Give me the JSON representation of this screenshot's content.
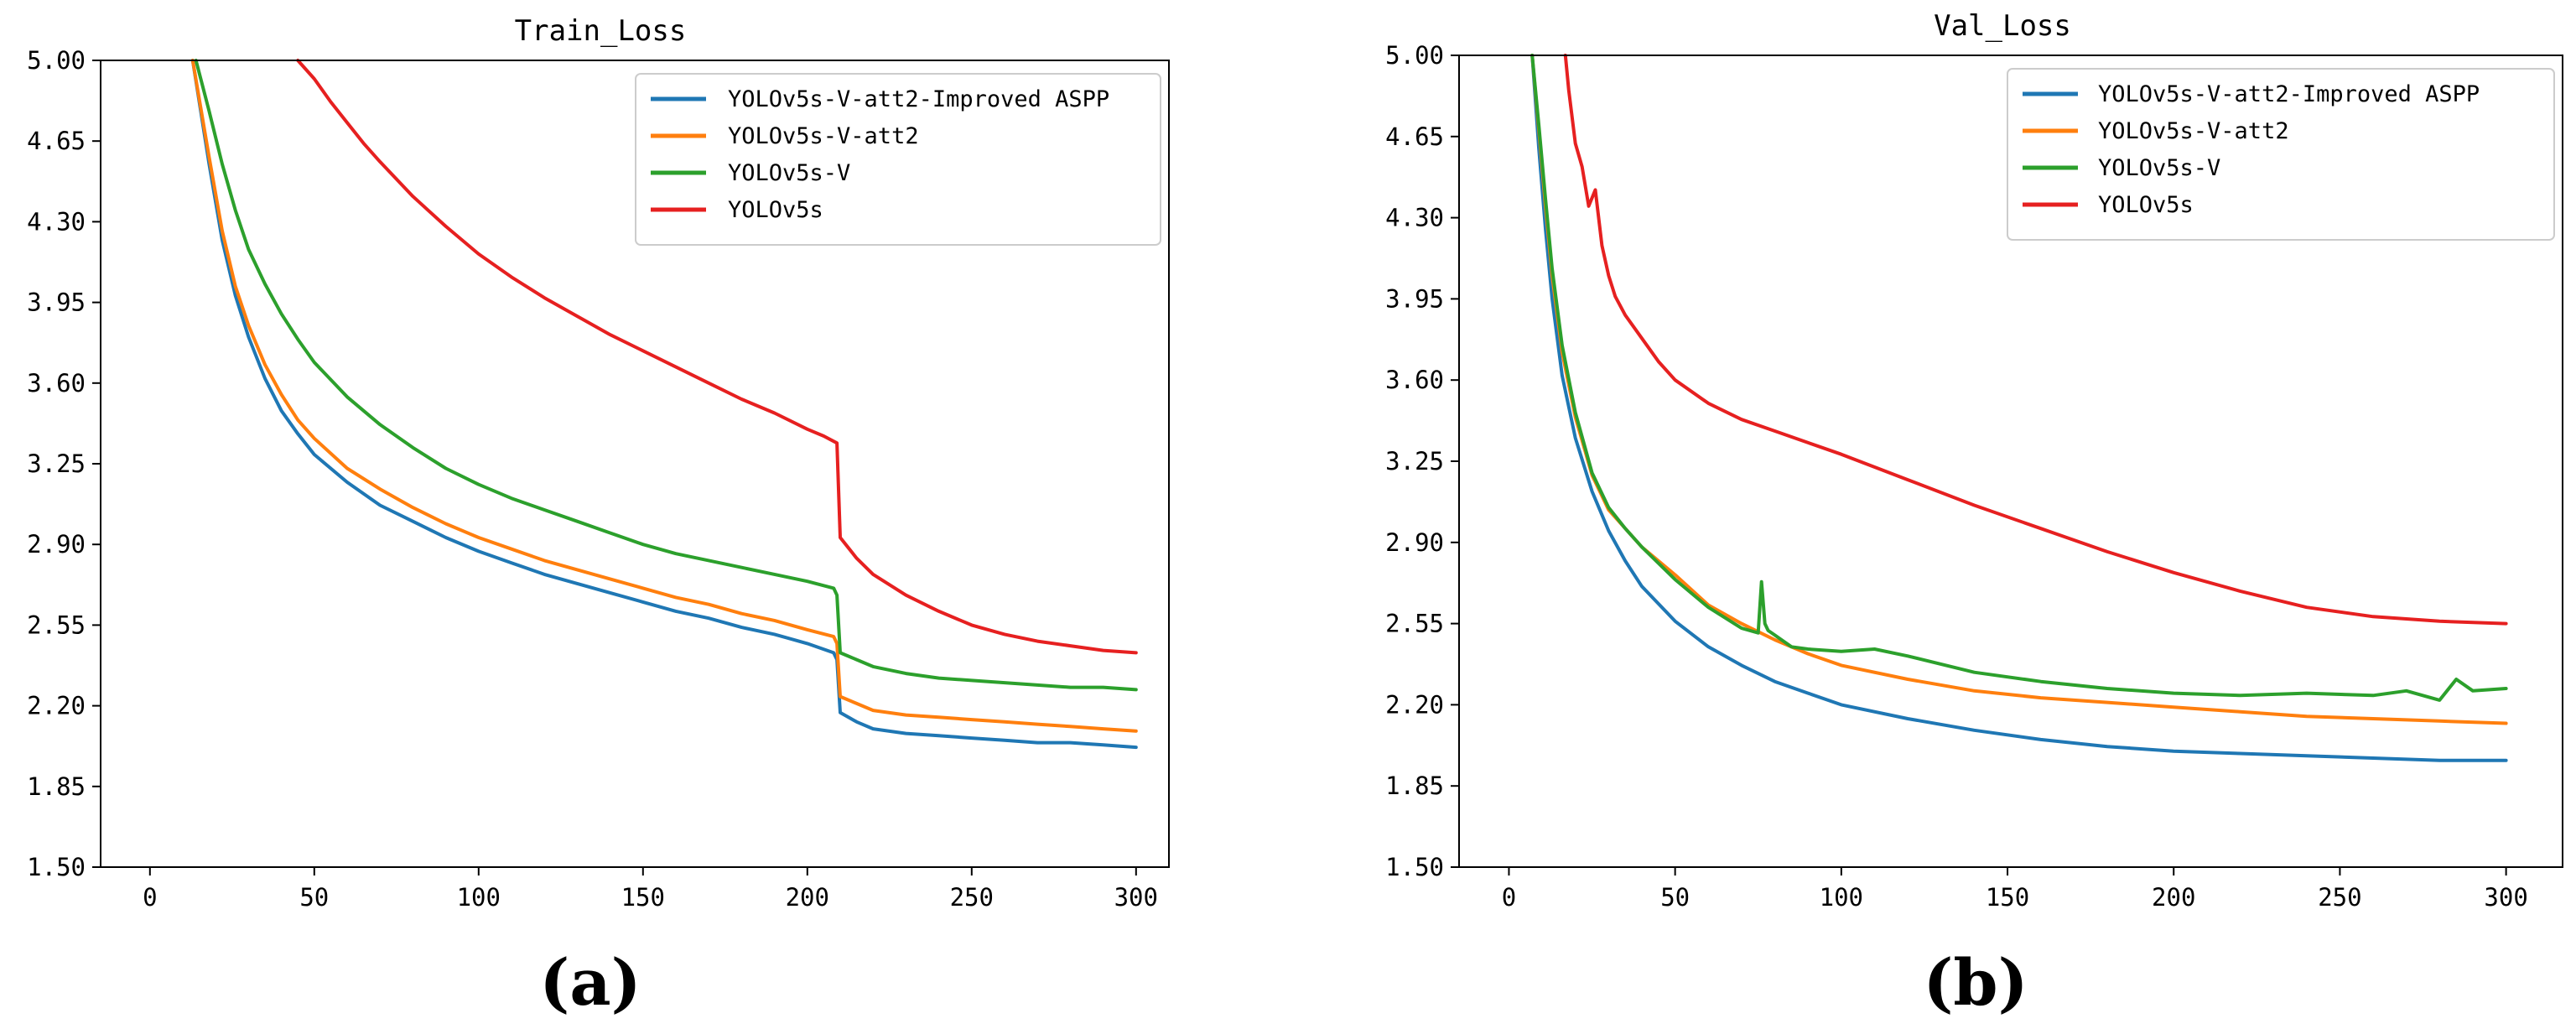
{
  "chart_data": [
    {
      "type": "line",
      "title": "Train_Loss",
      "panel_label": "(a)",
      "xlabel": "",
      "ylabel": "",
      "xlim": [
        -15,
        310
      ],
      "ylim": [
        1.5,
        5.0
      ],
      "xticks": [
        "0",
        "50",
        "100",
        "150",
        "200",
        "250",
        "300"
      ],
      "yticks": [
        "1.50",
        "1.85",
        "2.20",
        "2.55",
        "2.90",
        "3.25",
        "3.60",
        "3.95",
        "4.30",
        "4.65",
        "5.00"
      ],
      "grid": false,
      "legend_position": "upper right",
      "series": [
        {
          "name": "YOLOv5s-V-att2-Improved ASPP",
          "color": "#1f77b4",
          "x": [
            13,
            18,
            22,
            26,
            30,
            35,
            40,
            45,
            50,
            60,
            70,
            80,
            90,
            100,
            110,
            120,
            130,
            140,
            150,
            160,
            170,
            180,
            190,
            200,
            208,
            209,
            210,
            215,
            220,
            230,
            240,
            250,
            260,
            270,
            280,
            290,
            300
          ],
          "y": [
            5.0,
            4.55,
            4.22,
            3.98,
            3.8,
            3.62,
            3.48,
            3.38,
            3.29,
            3.17,
            3.07,
            3.0,
            2.93,
            2.87,
            2.82,
            2.77,
            2.73,
            2.69,
            2.65,
            2.61,
            2.58,
            2.54,
            2.51,
            2.47,
            2.43,
            2.4,
            2.17,
            2.13,
            2.1,
            2.08,
            2.07,
            2.06,
            2.05,
            2.04,
            2.04,
            2.03,
            2.02
          ]
        },
        {
          "name": "YOLOv5s-V-att2",
          "color": "#ff7f0e",
          "x": [
            13,
            18,
            22,
            26,
            30,
            35,
            40,
            45,
            50,
            60,
            70,
            80,
            90,
            100,
            110,
            120,
            130,
            140,
            150,
            160,
            170,
            180,
            190,
            200,
            208,
            209,
            210,
            215,
            220,
            230,
            240,
            250,
            260,
            270,
            280,
            290,
            300
          ],
          "y": [
            5.0,
            4.58,
            4.26,
            4.02,
            3.85,
            3.68,
            3.55,
            3.44,
            3.36,
            3.23,
            3.14,
            3.06,
            2.99,
            2.93,
            2.88,
            2.83,
            2.79,
            2.75,
            2.71,
            2.67,
            2.64,
            2.6,
            2.57,
            2.53,
            2.5,
            2.47,
            2.24,
            2.21,
            2.18,
            2.16,
            2.15,
            2.14,
            2.13,
            2.12,
            2.11,
            2.1,
            2.09
          ]
        },
        {
          "name": "YOLOv5s-V",
          "color": "#2ca02c",
          "x": [
            14,
            18,
            22,
            26,
            30,
            35,
            40,
            45,
            50,
            60,
            70,
            80,
            90,
            100,
            110,
            120,
            130,
            140,
            150,
            160,
            170,
            180,
            190,
            200,
            208,
            209,
            210,
            215,
            220,
            230,
            240,
            250,
            260,
            270,
            280,
            290,
            300
          ],
          "y": [
            5.0,
            4.78,
            4.55,
            4.35,
            4.18,
            4.03,
            3.9,
            3.79,
            3.69,
            3.54,
            3.42,
            3.32,
            3.23,
            3.16,
            3.1,
            3.05,
            3.0,
            2.95,
            2.9,
            2.86,
            2.83,
            2.8,
            2.77,
            2.74,
            2.71,
            2.68,
            2.43,
            2.4,
            2.37,
            2.34,
            2.32,
            2.31,
            2.3,
            2.29,
            2.28,
            2.28,
            2.27
          ]
        },
        {
          "name": "YOLOv5s",
          "color": "#e62020",
          "x": [
            45,
            50,
            55,
            60,
            65,
            70,
            80,
            90,
            100,
            110,
            120,
            130,
            140,
            150,
            160,
            170,
            180,
            190,
            200,
            205,
            209,
            210,
            215,
            220,
            230,
            240,
            250,
            260,
            270,
            280,
            290,
            300
          ],
          "y": [
            5.0,
            4.92,
            4.82,
            4.73,
            4.64,
            4.56,
            4.41,
            4.28,
            4.16,
            4.06,
            3.97,
            3.89,
            3.81,
            3.74,
            3.67,
            3.6,
            3.53,
            3.47,
            3.4,
            3.37,
            3.34,
            2.93,
            2.84,
            2.77,
            2.68,
            2.61,
            2.55,
            2.51,
            2.48,
            2.46,
            2.44,
            2.43
          ]
        }
      ]
    },
    {
      "type": "line",
      "title": "Val_Loss",
      "panel_label": "(b)",
      "xlabel": "",
      "ylabel": "",
      "xlim": [
        -15,
        317
      ],
      "ylim": [
        1.5,
        5.0
      ],
      "xticks": [
        "0",
        "50",
        "100",
        "150",
        "200",
        "250",
        "300"
      ],
      "yticks": [
        "1.50",
        "1.85",
        "2.20",
        "2.55",
        "2.90",
        "3.25",
        "3.60",
        "3.95",
        "4.30",
        "4.65",
        "5.00"
      ],
      "grid": false,
      "legend_position": "upper right",
      "series": [
        {
          "name": "YOLOv5s-V-att2-Improved ASPP",
          "color": "#1f77b4",
          "x": [
            7,
            9,
            11,
            13,
            16,
            20,
            25,
            30,
            35,
            40,
            50,
            60,
            70,
            80,
            90,
            100,
            120,
            140,
            160,
            180,
            200,
            220,
            240,
            260,
            280,
            300
          ],
          "y": [
            5.0,
            4.6,
            4.25,
            3.95,
            3.62,
            3.35,
            3.12,
            2.95,
            2.82,
            2.71,
            2.56,
            2.45,
            2.37,
            2.3,
            2.25,
            2.2,
            2.14,
            2.09,
            2.05,
            2.02,
            2.0,
            1.99,
            1.98,
            1.97,
            1.96,
            1.96
          ]
        },
        {
          "name": "YOLOv5s-V-att2",
          "color": "#ff7f0e",
          "x": [
            7,
            9,
            11,
            13,
            16,
            20,
            25,
            30,
            35,
            40,
            50,
            60,
            70,
            80,
            90,
            100,
            120,
            140,
            160,
            180,
            200,
            220,
            240,
            260,
            280,
            300
          ],
          "y": [
            5.0,
            4.68,
            4.35,
            4.05,
            3.72,
            3.44,
            3.19,
            3.04,
            2.96,
            2.88,
            2.76,
            2.63,
            2.55,
            2.48,
            2.42,
            2.37,
            2.31,
            2.26,
            2.23,
            2.21,
            2.19,
            2.17,
            2.15,
            2.14,
            2.13,
            2.12
          ]
        },
        {
          "name": "YOLOv5s-V",
          "color": "#2ca02c",
          "x": [
            7,
            9,
            11,
            13,
            16,
            20,
            25,
            30,
            35,
            40,
            50,
            60,
            70,
            75,
            76,
            77,
            78,
            80,
            85,
            90,
            100,
            110,
            120,
            140,
            160,
            180,
            200,
            220,
            240,
            260,
            270,
            280,
            285,
            290,
            300
          ],
          "y": [
            5.0,
            4.7,
            4.38,
            4.08,
            3.75,
            3.46,
            3.2,
            3.05,
            2.96,
            2.88,
            2.74,
            2.62,
            2.53,
            2.51,
            2.73,
            2.55,
            2.52,
            2.5,
            2.45,
            2.44,
            2.43,
            2.44,
            2.41,
            2.34,
            2.3,
            2.27,
            2.25,
            2.24,
            2.25,
            2.24,
            2.26,
            2.22,
            2.31,
            2.26,
            2.27
          ]
        },
        {
          "name": "YOLOv5s",
          "color": "#e62020",
          "x": [
            17,
            18,
            20,
            22,
            24,
            26,
            28,
            30,
            32,
            35,
            40,
            45,
            50,
            60,
            70,
            80,
            90,
            100,
            120,
            140,
            160,
            180,
            200,
            220,
            240,
            260,
            280,
            300
          ],
          "y": [
            5.0,
            4.85,
            4.62,
            4.52,
            4.35,
            4.42,
            4.18,
            4.05,
            3.96,
            3.88,
            3.78,
            3.68,
            3.6,
            3.5,
            3.43,
            3.38,
            3.33,
            3.28,
            3.17,
            3.06,
            2.96,
            2.86,
            2.77,
            2.69,
            2.62,
            2.58,
            2.56,
            2.55
          ]
        }
      ]
    }
  ]
}
